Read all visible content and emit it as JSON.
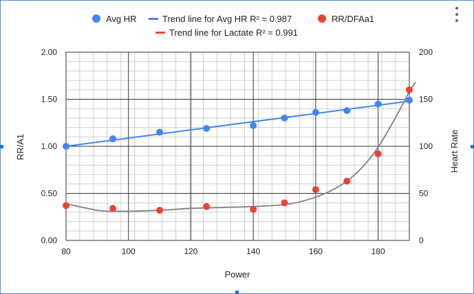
{
  "chart_data": {
    "type": "scatter",
    "title": "",
    "xlabel": "Power",
    "ylabel_left": "RR/A1",
    "ylabel_right": "Heart Rate",
    "xlim": [
      80,
      190
    ],
    "ylim_left": [
      0,
      2
    ],
    "ylim_right": [
      0,
      200
    ],
    "x_ticks": [
      "80",
      "100",
      "120",
      "140",
      "160",
      "180"
    ],
    "y_left_ticks": [
      "0.00",
      "0.50",
      "1.00",
      "1.50",
      "2.00"
    ],
    "y_right_ticks": [
      "0",
      "50",
      "100",
      "150",
      "200"
    ],
    "grid": true,
    "legend_position": "top",
    "legend": [
      {
        "label": "Avg HR",
        "kind": "dot",
        "color": "#4285f4"
      },
      {
        "label": "Trend line for Avg HR R² = 0.987",
        "kind": "line",
        "color": "#4285f4"
      },
      {
        "label": "RR/DFAa1",
        "kind": "dot",
        "color": "#ea4335"
      },
      {
        "label": "Trend line for Lactate R² = 0.991",
        "kind": "line",
        "color": "#ea4335"
      }
    ],
    "series": [
      {
        "name": "Avg HR",
        "axis": "right",
        "color": "#4285f4",
        "x": [
          80,
          95,
          110,
          125,
          140,
          150,
          160,
          170,
          180,
          190
        ],
        "y": [
          100,
          108,
          115,
          119,
          122,
          130,
          136,
          138,
          145,
          149
        ]
      },
      {
        "name": "RR/DFAa1",
        "axis": "left",
        "color": "#ea4335",
        "x": [
          80,
          95,
          110,
          125,
          140,
          150,
          160,
          170,
          180,
          190
        ],
        "y": [
          0.37,
          0.34,
          0.32,
          0.36,
          0.33,
          0.4,
          0.54,
          0.63,
          0.92,
          1.6
        ]
      }
    ],
    "trendlines": [
      {
        "name": "Trend line for Avg HR R² = 0.987",
        "axis": "right",
        "color": "#4285f4",
        "x": [
          80,
          190
        ],
        "y": [
          100,
          148
        ]
      },
      {
        "name": "Trend line for Lactate R² = 0.991",
        "axis": "left",
        "color": "#888888",
        "x": [
          80,
          90,
          95,
          100,
          110,
          120,
          130,
          140,
          150,
          155,
          160,
          165,
          170,
          175,
          180,
          185,
          190,
          192
        ],
        "y": [
          0.39,
          0.32,
          0.31,
          0.31,
          0.32,
          0.34,
          0.35,
          0.36,
          0.38,
          0.41,
          0.46,
          0.53,
          0.63,
          0.78,
          0.99,
          1.27,
          1.58,
          1.68
        ]
      }
    ]
  }
}
